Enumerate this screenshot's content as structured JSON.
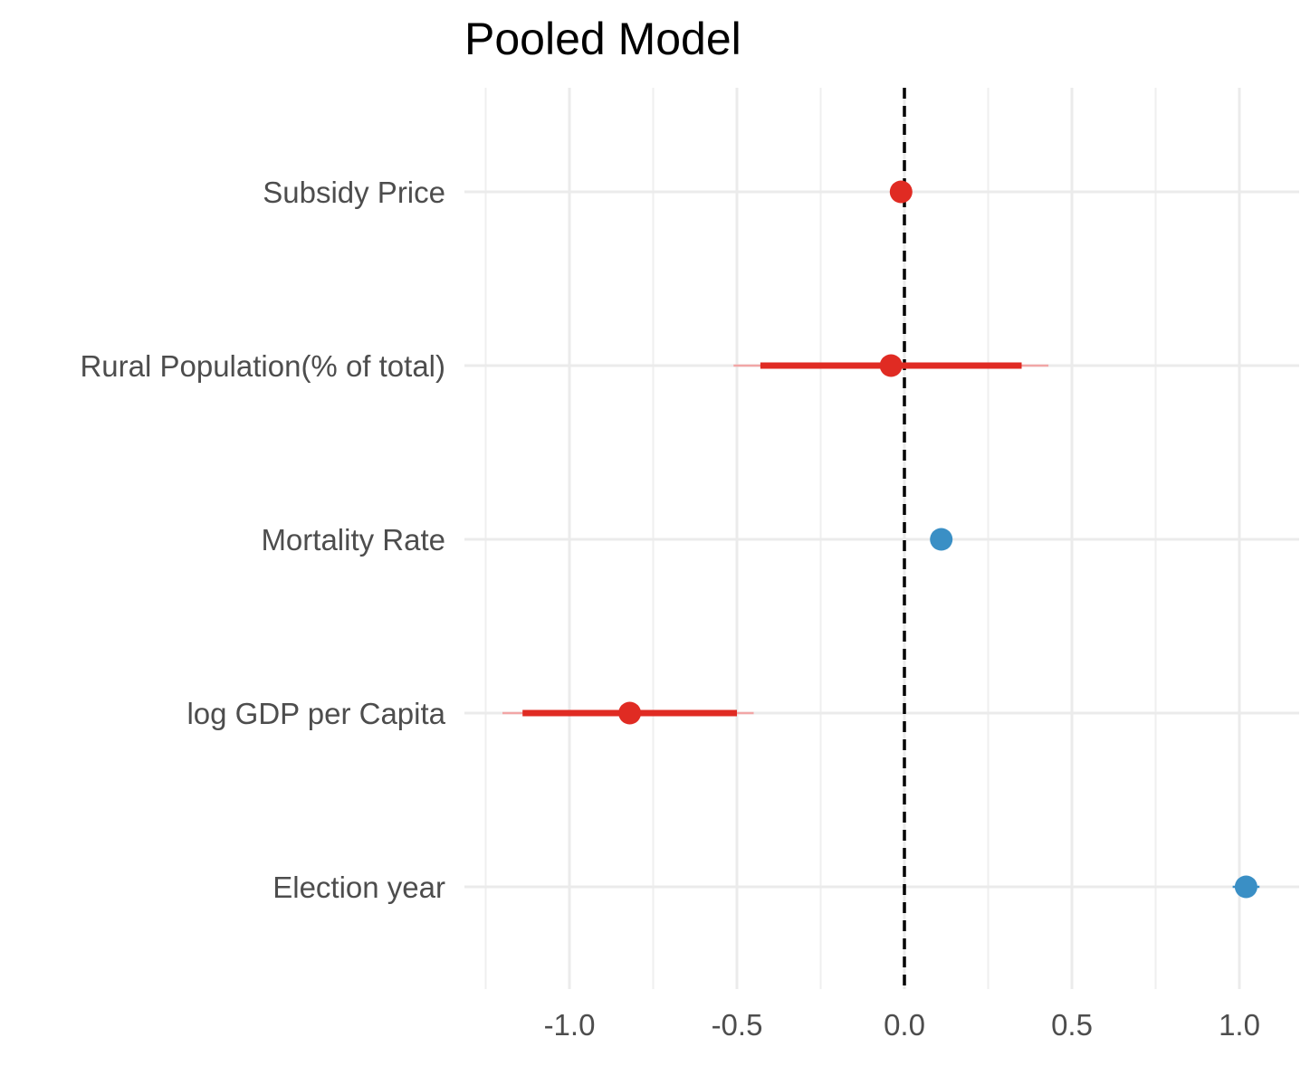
{
  "chart_data": {
    "type": "scatter",
    "subtype": "coefficient-plot",
    "title": "Pooled Model",
    "xlabel": "",
    "ylabel": "",
    "xlim": [
      -1.25,
      1.18
    ],
    "x_ticks": [
      -1.0,
      -0.5,
      0.0,
      0.5,
      1.0
    ],
    "x_tick_labels": [
      "-1.0",
      "-0.5",
      "0.0",
      "0.5",
      "1.0"
    ],
    "reference_line": {
      "x": 0,
      "style": "dashed",
      "color": "#000000"
    },
    "grid": true,
    "legend": "none",
    "colors": {
      "negative": "#e02b23",
      "positive": "#3a8fc5",
      "outer_interval": "#f2a6a6"
    },
    "categories": [
      "Subsidy Price",
      "Rural Population(% of total)",
      "Mortality Rate",
      "log GDP per Capita",
      "Election year"
    ],
    "points": [
      {
        "label": "Subsidy Price",
        "estimate": -0.01,
        "inner": [
          -0.02,
          0.0
        ],
        "outer": [
          -0.025,
          0.005
        ],
        "sign": "negative"
      },
      {
        "label": "Rural Population(% of total)",
        "estimate": -0.04,
        "inner": [
          -0.43,
          0.35
        ],
        "outer": [
          -0.51,
          0.43
        ],
        "sign": "negative"
      },
      {
        "label": "Mortality Rate",
        "estimate": 0.11,
        "inner": [
          0.1,
          0.12
        ],
        "outer": [
          0.095,
          0.125
        ],
        "sign": "positive"
      },
      {
        "label": "log GDP per Capita",
        "estimate": -0.82,
        "inner": [
          -1.14,
          -0.5
        ],
        "outer": [
          -1.2,
          -0.45
        ],
        "sign": "negative"
      },
      {
        "label": "Election year",
        "estimate": 1.02,
        "inner": [
          0.99,
          1.05
        ],
        "outer": [
          0.98,
          1.06
        ],
        "sign": "positive"
      }
    ]
  }
}
